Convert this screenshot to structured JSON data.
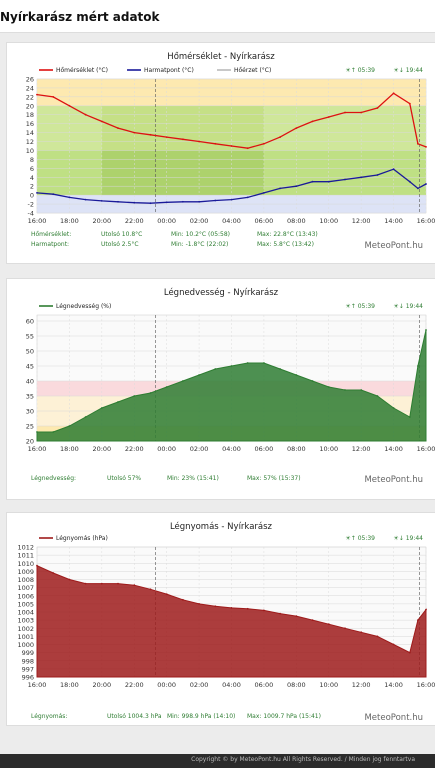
{
  "page": {
    "title": "Nyírkarász mért adatok"
  },
  "footer": {
    "copyright": "Copyright © by MeteoPont.hu All Rights Reserved. / Minden jog fenntartva"
  },
  "chart_data": [
    {
      "type": "line",
      "title": "Hőmérséklet - Nyírkarász",
      "legend": [
        "Hőmérséklet (°C)",
        "Harmatpont (°C)",
        "Hőérzet (°C)"
      ],
      "sunrise": "☀↑ 05:39",
      "sunset": "☀↓ 19:44",
      "x_ticks": [
        "16:00",
        "18:00",
        "20:00",
        "22:00",
        "00:00",
        "02:00",
        "04:00",
        "06:00",
        "08:00",
        "10:00",
        "12:00",
        "14:00",
        "16:00"
      ],
      "ylim": [
        -4,
        26
      ],
      "y_ticks": [
        26,
        24,
        22,
        20,
        18,
        16,
        14,
        12,
        10,
        8,
        6,
        4,
        2,
        0,
        -2,
        -4
      ],
      "x": [
        0,
        1,
        2,
        3,
        4,
        5,
        6,
        7,
        8,
        9,
        10,
        11,
        12,
        13,
        14,
        15,
        16,
        17,
        18,
        19,
        20,
        21,
        22,
        23,
        23.5,
        24
      ],
      "series": [
        {
          "name": "Hőmérséklet (°C)",
          "color": "#dd1111",
          "values": [
            22.5,
            22,
            20,
            18,
            16.5,
            15,
            14,
            13.5,
            13,
            12.5,
            12,
            11.5,
            11,
            10.5,
            11.5,
            13,
            15,
            16.5,
            17.5,
            18.5,
            18.5,
            19.5,
            22.8,
            20.5,
            11.5,
            10.8
          ]
        },
        {
          "name": "Harmatpont (°C)",
          "color": "#1a1a99",
          "values": [
            0.5,
            0.2,
            -0.5,
            -1,
            -1.3,
            -1.5,
            -1.7,
            -1.8,
            -1.6,
            -1.5,
            -1.5,
            -1.2,
            -1,
            -0.5,
            0.5,
            1.5,
            2,
            3,
            3,
            3.5,
            4,
            4.5,
            5.8,
            3,
            1.5,
            2.5
          ]
        }
      ],
      "stats": [
        {
          "label": "Hőmérséklet:",
          "last": "Utolsó 10.8°C",
          "min": "Min: 10.2°C (05:58)",
          "max": "Max: 22.8°C (13:43)"
        },
        {
          "label": "Harmatpont:",
          "last": "Utolsó 2.5°C",
          "min": "Min: -1.8°C (22:02)",
          "max": "Max: 5.8°C (13:42)"
        }
      ],
      "brand": "MeteoPont.hu"
    },
    {
      "type": "area",
      "title": "Légnedvesség - Nyírkarász",
      "legend": [
        "Légnedvesség (%)"
      ],
      "sunrise": "☀↑ 05:39",
      "sunset": "☀↓ 19:44",
      "x_ticks": [
        "16:00",
        "18:00",
        "20:00",
        "22:00",
        "00:00",
        "02:00",
        "04:00",
        "06:00",
        "08:00",
        "10:00",
        "12:00",
        "14:00",
        "16:00"
      ],
      "ylim": [
        20,
        62
      ],
      "y_ticks": [
        60,
        55,
        50,
        45,
        40,
        35,
        30,
        25,
        20
      ],
      "x": [
        0,
        1,
        2,
        3,
        4,
        5,
        6,
        7,
        8,
        9,
        10,
        11,
        12,
        13,
        14,
        15,
        16,
        17,
        18,
        19,
        20,
        21,
        22,
        23,
        23.5,
        24
      ],
      "series": [
        {
          "name": "Légnedvesség (%)",
          "color": "#2e7d32",
          "values": [
            23,
            23,
            25,
            28,
            31,
            33,
            35,
            36,
            38,
            40,
            42,
            44,
            45,
            46,
            46,
            44,
            42,
            40,
            38,
            37,
            37,
            35,
            31,
            28,
            45,
            57
          ]
        }
      ],
      "stats": [
        {
          "label": "Légnedvesség:",
          "last": "Utolsó 57%",
          "min": "Min: 23% (15:41)",
          "max": "Max: 57% (15:37)"
        }
      ],
      "brand": "MeteoPont.hu"
    },
    {
      "type": "area",
      "title": "Légnyomás - Nyírkarász",
      "legend": [
        "Légnyomás (hPa)"
      ],
      "sunrise": "☀↑ 05:39",
      "sunset": "☀↓ 19:44",
      "x_ticks": [
        "16:00",
        "18:00",
        "20:00",
        "22:00",
        "00:00",
        "02:00",
        "04:00",
        "06:00",
        "08:00",
        "10:00",
        "12:00",
        "14:00",
        "16:00"
      ],
      "ylim": [
        996,
        1012
      ],
      "y_ticks": [
        1012,
        1011,
        1010,
        1009,
        1008,
        1007,
        1006,
        1005,
        1004,
        1003,
        1002,
        1001,
        1000,
        999,
        998,
        997,
        996
      ],
      "x": [
        0,
        1,
        2,
        3,
        4,
        5,
        6,
        7,
        8,
        9,
        10,
        11,
        12,
        13,
        14,
        15,
        16,
        17,
        18,
        19,
        20,
        21,
        22,
        23,
        23.5,
        24
      ],
      "series": [
        {
          "name": "Légnyomás (hPa)",
          "color": "#9e1b1b",
          "values": [
            1009.7,
            1008.8,
            1008,
            1007.5,
            1007.5,
            1007.5,
            1007.3,
            1006.8,
            1006.2,
            1005.5,
            1005,
            1004.7,
            1004.5,
            1004.4,
            1004.2,
            1003.8,
            1003.5,
            1003,
            1002.5,
            1002,
            1001.5,
            1001,
            1000,
            999,
            1003,
            1004.3
          ]
        }
      ],
      "stats": [
        {
          "label": "Légnyomás:",
          "last": "Utolsó 1004.3 hPa",
          "min": "Min: 998.9 hPa (14:10)",
          "max": "Max: 1009.7 hPa (15:41)"
        }
      ],
      "brand": "MeteoPont.hu"
    }
  ]
}
